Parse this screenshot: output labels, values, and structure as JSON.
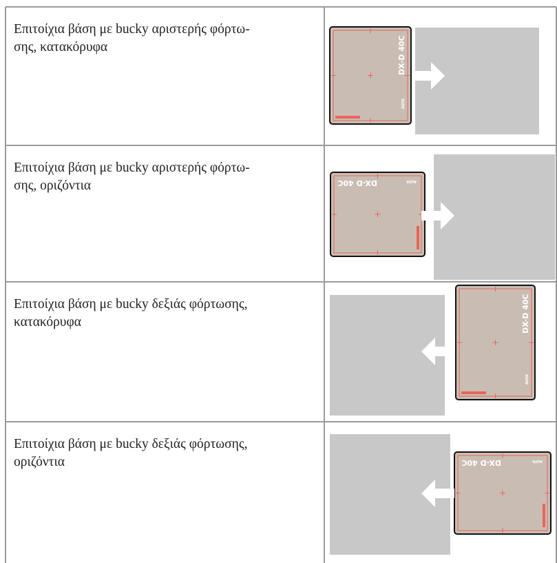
{
  "table": {
    "rows": [
      {
        "description": [
          "Επιτοίχια βάση με bucky αριστερής φόρτω-",
          "σης, κατακόρυφα"
        ]
      },
      {
        "description": [
          "Επιτοίχια βάση με bucky αριστερής φόρτω-",
          "σης, οριζόντια"
        ]
      },
      {
        "description": [
          "Επιτοίχια βάση με bucky δεξιάς φόρτωσης,",
          "κατακόρυφα"
        ]
      },
      {
        "description": [
          "Επιτοίχια βάση με bucky δεξιάς φόρτωσης,",
          "οριζόντια"
        ]
      }
    ]
  },
  "detector": {
    "model": "DX-D 40C",
    "brand": "AGFA"
  }
}
